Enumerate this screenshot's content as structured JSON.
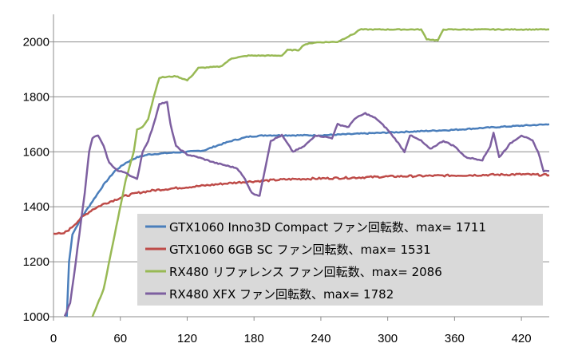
{
  "chart_data": {
    "type": "line",
    "title": "",
    "xlabel": "",
    "ylabel": "",
    "xlim": [
      0,
      445
    ],
    "ylim": [
      1000,
      2100
    ],
    "x_ticks": [
      0,
      60,
      120,
      180,
      240,
      300,
      360,
      420
    ],
    "y_ticks": [
      1000,
      1200,
      1400,
      1600,
      1800,
      2000
    ],
    "grid": {
      "horizontal": true,
      "vertical": false
    },
    "legend_position": "bottom-center",
    "series": [
      {
        "name": "GTX1060 Inno3D Compact ファン回転数、max= 1711",
        "color": "#4a7ebb",
        "points": [
          [
            12,
            1000
          ],
          [
            14,
            1200
          ],
          [
            17,
            1300
          ],
          [
            25,
            1360
          ],
          [
            35,
            1420
          ],
          [
            45,
            1480
          ],
          [
            55,
            1530
          ],
          [
            65,
            1560
          ],
          [
            75,
            1580
          ],
          [
            85,
            1590
          ],
          [
            100,
            1595
          ],
          [
            120,
            1600
          ],
          [
            135,
            1605
          ],
          [
            145,
            1620
          ],
          [
            160,
            1640
          ],
          [
            175,
            1655
          ],
          [
            190,
            1660
          ],
          [
            210,
            1660
          ],
          [
            240,
            1660
          ],
          [
            270,
            1665
          ],
          [
            300,
            1670
          ],
          [
            330,
            1675
          ],
          [
            360,
            1680
          ],
          [
            390,
            1688
          ],
          [
            420,
            1695
          ],
          [
            445,
            1700
          ]
        ]
      },
      {
        "name": "GTX1060 6GB SC ファン回転数、max= 1531",
        "color": "#be4b48",
        "points": [
          [
            0,
            1305
          ],
          [
            8,
            1300
          ],
          [
            15,
            1320
          ],
          [
            25,
            1360
          ],
          [
            35,
            1390
          ],
          [
            45,
            1410
          ],
          [
            55,
            1425
          ],
          [
            65,
            1440
          ],
          [
            75,
            1450
          ],
          [
            90,
            1460
          ],
          [
            110,
            1468
          ],
          [
            130,
            1475
          ],
          [
            150,
            1483
          ],
          [
            170,
            1490
          ],
          [
            190,
            1495
          ],
          [
            210,
            1500
          ],
          [
            240,
            1503
          ],
          [
            270,
            1506
          ],
          [
            300,
            1510
          ],
          [
            330,
            1512
          ],
          [
            360,
            1514
          ],
          [
            390,
            1516
          ],
          [
            420,
            1518
          ],
          [
            445,
            1515
          ]
        ]
      },
      {
        "name": "RX480 リファレンス ファン回転数、max= 2086",
        "color": "#98b954",
        "points": [
          [
            35,
            1000
          ],
          [
            45,
            1100
          ],
          [
            55,
            1300
          ],
          [
            65,
            1500
          ],
          [
            72,
            1600
          ],
          [
            75,
            1680
          ],
          [
            80,
            1690
          ],
          [
            85,
            1720
          ],
          [
            90,
            1800
          ],
          [
            95,
            1870
          ],
          [
            110,
            1875
          ],
          [
            120,
            1860
          ],
          [
            125,
            1880
          ],
          [
            130,
            1905
          ],
          [
            150,
            1910
          ],
          [
            160,
            1940
          ],
          [
            175,
            1950
          ],
          [
            205,
            1950
          ],
          [
            210,
            1970
          ],
          [
            220,
            1970
          ],
          [
            225,
            1990
          ],
          [
            235,
            1998
          ],
          [
            255,
            2000
          ],
          [
            265,
            2020
          ],
          [
            270,
            2030
          ],
          [
            275,
            2045
          ],
          [
            300,
            2045
          ],
          [
            330,
            2045
          ],
          [
            335,
            2010
          ],
          [
            345,
            2005
          ],
          [
            350,
            2045
          ],
          [
            380,
            2045
          ],
          [
            420,
            2045
          ],
          [
            445,
            2045
          ]
        ]
      },
      {
        "name": "RX480 XFX ファン回転数、max= 1782",
        "color": "#7d5fa0",
        "points": [
          [
            10,
            1000
          ],
          [
            15,
            1050
          ],
          [
            20,
            1200
          ],
          [
            28,
            1450
          ],
          [
            32,
            1600
          ],
          [
            35,
            1650
          ],
          [
            40,
            1660
          ],
          [
            45,
            1620
          ],
          [
            50,
            1560
          ],
          [
            58,
            1530
          ],
          [
            65,
            1525
          ],
          [
            70,
            1510
          ],
          [
            75,
            1500
          ],
          [
            80,
            1600
          ],
          [
            85,
            1640
          ],
          [
            90,
            1700
          ],
          [
            95,
            1775
          ],
          [
            102,
            1780
          ],
          [
            105,
            1700
          ],
          [
            110,
            1620
          ],
          [
            120,
            1590
          ],
          [
            130,
            1580
          ],
          [
            145,
            1560
          ],
          [
            155,
            1550
          ],
          [
            165,
            1540
          ],
          [
            172,
            1500
          ],
          [
            178,
            1450
          ],
          [
            185,
            1440
          ],
          [
            188,
            1500
          ],
          [
            195,
            1640
          ],
          [
            205,
            1660
          ],
          [
            215,
            1600
          ],
          [
            225,
            1620
          ],
          [
            235,
            1660
          ],
          [
            250,
            1650
          ],
          [
            255,
            1700
          ],
          [
            265,
            1690
          ],
          [
            270,
            1720
          ],
          [
            280,
            1740
          ],
          [
            290,
            1720
          ],
          [
            300,
            1680
          ],
          [
            308,
            1640
          ],
          [
            315,
            1600
          ],
          [
            320,
            1660
          ],
          [
            330,
            1640
          ],
          [
            338,
            1610
          ],
          [
            350,
            1640
          ],
          [
            360,
            1620
          ],
          [
            370,
            1580
          ],
          [
            385,
            1570
          ],
          [
            392,
            1620
          ],
          [
            395,
            1670
          ],
          [
            400,
            1580
          ],
          [
            410,
            1630
          ],
          [
            420,
            1660
          ],
          [
            430,
            1640
          ],
          [
            435,
            1600
          ],
          [
            440,
            1530
          ],
          [
            445,
            1530
          ]
        ]
      }
    ]
  }
}
